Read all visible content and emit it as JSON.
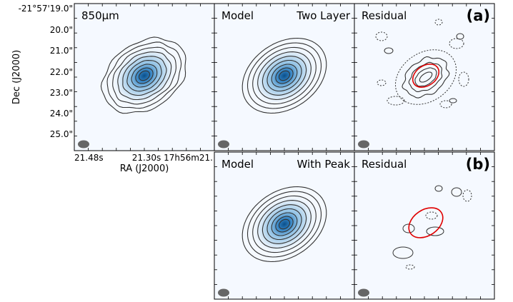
{
  "chart_data": {
    "type": "contour-map-grid",
    "ylabel": "Dec (J2000)",
    "xlabel": "RA (J2000)",
    "y_tick_labels": [
      "-21°57'19.0\"",
      "20.0\"",
      "21.0\"",
      "22.0\"",
      "23.0\"",
      "24.0\"",
      "25.0\""
    ],
    "x_tick_labels": [
      "21.48s",
      "21.30s",
      "17h56m21."
    ],
    "panels": [
      {
        "id": "data",
        "label_left": "850μm",
        "label_right": "",
        "tag": "",
        "kind": "data"
      },
      {
        "id": "model-two-layer",
        "label_left": "Model",
        "label_right": "Two Layer",
        "tag": "",
        "kind": "model"
      },
      {
        "id": "residual-a",
        "label_left": "Residual",
        "label_right": "",
        "tag": "(a)",
        "kind": "residual"
      },
      {
        "id": "model-with-peak",
        "label_left": "Model",
        "label_right": "With Peak",
        "tag": "",
        "kind": "model"
      },
      {
        "id": "residual-b",
        "label_left": "Residual",
        "label_right": "",
        "tag": "(b)",
        "kind": "residual"
      }
    ],
    "contour_levels_data": 9,
    "contour_levels_model": 9,
    "colors": {
      "image_low": "#f5f9ff",
      "image_high": "#0b4f8a",
      "contour": "#333333",
      "residual_marker": "#e00000",
      "beam": "#666666"
    }
  }
}
